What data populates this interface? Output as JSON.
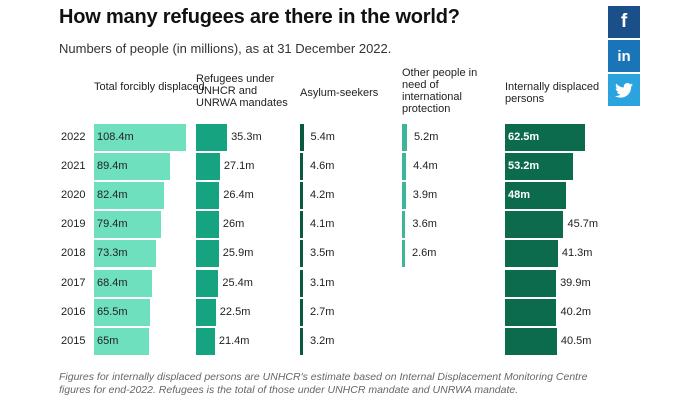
{
  "title": "How many refugees are there in the world?",
  "subtitle": "Numbers of people (in millions), as at 31 December 2022.",
  "footnote": "Figures for internally displaced persons are UNHCR's estimate based on Internal Displacement Monitoring Centre figures for end-2022. Refugees is the total of those under UNHCR mandate and UNRWA mandate.",
  "social": [
    {
      "name": "facebook",
      "glyph": "f",
      "icon": "facebook-icon"
    },
    {
      "name": "linkedin",
      "glyph": "in",
      "icon": "linkedin-icon"
    },
    {
      "name": "twitter",
      "glyph": "",
      "icon": "twitter-icon"
    }
  ],
  "chart_data": {
    "type": "table",
    "units": "millions",
    "years": [
      "2022",
      "2021",
      "2020",
      "2019",
      "2018",
      "2017",
      "2016",
      "2015"
    ],
    "series": [
      {
        "name": "Total forcibly displaced",
        "color": "#6fe0bd",
        "values": [
          108.4,
          89.4,
          82.4,
          79.4,
          73.3,
          68.4,
          65.5,
          65
        ],
        "labels": [
          "108.4m",
          "89.4m",
          "82.4m",
          "79.4m",
          "73.3m",
          "68.4m",
          "65.5m",
          "65m"
        ]
      },
      {
        "name": "Refugees under UNHCR and UNRWA mandates",
        "color": "#16a380",
        "values": [
          35.3,
          27.1,
          26.4,
          26,
          25.9,
          25.4,
          22.5,
          21.4
        ],
        "labels": [
          "35.3m",
          "27.1m",
          "26.4m",
          "26m",
          "25.9m",
          "25.4m",
          "22.5m",
          "21.4m"
        ]
      },
      {
        "name": "Asylum-seekers",
        "color": "#0b5a3e",
        "values": [
          5.4,
          4.6,
          4.2,
          4.1,
          3.5,
          3.1,
          2.7,
          3.2
        ],
        "labels": [
          "5.4m",
          "4.6m",
          "4.2m",
          "4.1m",
          "3.5m",
          "3.1m",
          "2.7m",
          "3.2m"
        ]
      },
      {
        "name": "Other people in need of international protection",
        "color": "#3db59b",
        "values": [
          5.2,
          4.4,
          3.9,
          3.6,
          2.6,
          null,
          null,
          null
        ],
        "labels": [
          "5.2m",
          "4.4m",
          "3.9m",
          "3.6m",
          "2.6m",
          "",
          "",
          ""
        ]
      },
      {
        "name": "Internally displaced persons",
        "color": "#0b6b4c",
        "values": [
          62.5,
          53.2,
          48,
          45.7,
          41.3,
          39.9,
          40.2,
          40.5
        ],
        "labels": [
          "62.5m",
          "53.2m",
          "48m",
          "45.7m",
          "41.3m",
          "39.9m",
          "40.2m",
          "40.5m"
        ]
      }
    ]
  }
}
